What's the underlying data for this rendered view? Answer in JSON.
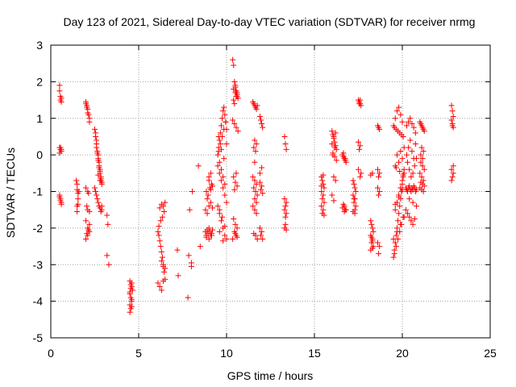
{
  "chart_data": {
    "type": "scatter",
    "title": "Day 123 of 2021, Sidereal Day-to-day VTEC variation (SDTVAR) for receiver nrmg",
    "xlabel": "GPS time / hours",
    "ylabel": "SDTVAR / TECUs",
    "xlim": [
      0,
      25
    ],
    "ylim": [
      -5,
      3
    ],
    "xticks": [
      0,
      5,
      10,
      15,
      20,
      25
    ],
    "yticks": [
      -5,
      -4,
      -3,
      -2,
      -1,
      0,
      1,
      2,
      3
    ],
    "grid": true,
    "marker": "+",
    "marker_color": "#ff0000",
    "series": [
      {
        "name": "SDTVAR",
        "x": [
          0.5,
          0.5,
          0.55,
          0.55,
          0.6,
          0.6,
          0.5,
          0.55,
          0.6,
          0.5,
          0.55,
          0.6,
          0.5,
          0.55,
          0.6,
          0.5,
          0.55,
          0.6,
          1.5,
          1.5,
          1.55,
          1.55,
          1.5,
          1.5,
          1.6,
          1.45,
          1.55,
          2.0,
          2.05,
          2.1,
          2.15,
          2.2,
          2.0,
          2.05,
          2.1,
          2.2,
          2.0,
          2.1,
          2.15,
          2.05,
          2.1,
          2.2,
          2.0,
          2.1,
          2.2,
          2.05,
          2.15,
          2.2,
          2.0,
          2.1,
          2.5,
          2.55,
          2.6,
          2.65,
          2.7,
          2.75,
          2.8,
          2.85,
          2.55,
          2.6,
          2.7,
          2.75,
          2.8,
          2.85,
          2.9,
          2.6,
          2.7,
          2.8,
          2.9,
          2.65,
          2.75,
          2.85,
          2.5,
          2.6,
          2.7,
          2.8,
          2.9,
          2.55,
          2.65,
          2.75,
          2.85,
          2.9,
          2.7,
          2.8,
          3.2,
          3.25,
          3.2,
          3.3,
          4.5,
          4.55,
          4.6,
          4.65,
          4.5,
          4.55,
          4.6,
          4.5,
          4.6,
          4.55,
          4.5,
          4.6,
          4.55,
          4.5,
          4.6,
          6.1,
          6.15,
          6.2,
          6.25,
          6.3,
          6.35,
          6.4,
          6.45,
          6.5,
          6.1,
          6.2,
          6.3,
          6.4,
          6.5,
          6.15,
          6.25,
          6.35,
          6.45,
          6.2,
          6.3,
          6.4,
          6.5,
          6.3,
          6.4,
          7.2,
          7.25,
          7.8,
          7.85,
          8.0,
          8.0,
          8.05,
          7.9,
          8.4,
          8.5,
          8.8,
          8.85,
          8.9,
          8.95,
          9.0,
          9.05,
          9.1,
          9.15,
          9.2,
          8.85,
          8.95,
          9.05,
          9.15,
          8.9,
          9.0,
          9.1,
          9.2,
          8.8,
          8.9,
          9.0,
          9.1,
          9.2,
          8.85,
          9.0,
          9.15,
          9.0,
          9.1,
          9.5,
          9.55,
          9.6,
          9.65,
          9.7,
          9.75,
          9.8,
          9.85,
          9.9,
          9.95,
          10.0,
          9.5,
          9.6,
          9.7,
          9.8,
          9.9,
          10.0,
          9.55,
          9.65,
          9.75,
          9.85,
          9.95,
          9.6,
          9.7,
          9.8,
          9.9,
          9.5,
          9.6,
          9.7,
          9.8,
          9.9,
          10.0,
          9.6,
          9.8,
          9.55,
          9.7,
          9.85,
          10.0,
          9.6,
          9.75,
          9.9,
          10.35,
          10.4,
          10.45,
          10.5,
          10.55,
          10.6,
          10.65,
          10.4,
          10.5,
          10.6,
          10.35,
          10.45,
          10.55,
          10.65,
          10.4,
          10.5,
          10.6,
          10.45,
          10.55,
          10.4,
          10.5,
          10.6,
          10.45,
          10.55,
          10.35,
          10.5,
          10.6,
          10.4,
          10.5,
          10.45,
          10.55,
          10.6,
          11.5,
          11.55,
          11.6,
          11.65,
          11.7,
          11.75,
          11.6,
          11.7,
          11.55,
          11.65,
          11.5,
          11.6,
          11.7,
          11.55,
          11.65,
          11.75,
          11.6,
          11.7,
          11.5,
          11.6,
          11.7,
          11.65,
          11.75,
          11.55,
          11.6,
          11.9,
          11.95,
          12.0,
          12.05,
          11.9,
          12.0,
          11.95,
          12.05,
          11.9,
          12.0,
          11.95,
          12.05,
          12.0,
          11.9,
          13.3,
          13.35,
          13.4,
          13.3,
          13.4,
          13.35,
          13.3,
          13.4,
          13.35,
          13.3,
          13.4,
          13.35,
          15.4,
          15.45,
          15.5,
          15.55,
          15.4,
          15.5,
          15.45,
          15.55,
          15.4,
          15.5,
          15.45,
          15.55,
          15.5,
          15.4,
          16.0,
          16.05,
          16.1,
          16.15,
          16.2,
          16.25,
          16.05,
          16.15,
          16.25,
          16.0,
          16.1,
          16.2,
          16.05,
          16.15,
          16.1,
          16.2,
          16.0,
          16.1,
          16.6,
          16.65,
          16.7,
          16.75,
          16.8,
          16.65,
          16.75,
          16.7,
          16.6,
          16.8,
          16.7,
          16.65,
          16.75,
          17.2,
          17.25,
          17.3,
          17.35,
          17.2,
          17.3,
          17.25,
          17.35,
          17.3,
          17.2,
          17.3,
          17.25,
          17.5,
          17.55,
          17.6,
          17.65,
          17.55,
          17.6,
          17.5,
          17.6,
          17.55,
          17.65,
          17.6,
          17.5,
          18.2,
          18.25,
          18.3,
          18.35,
          18.2,
          18.3,
          18.25,
          18.35,
          18.3,
          18.2,
          18.3,
          18.25,
          18.2,
          18.3,
          18.6,
          18.65,
          18.7,
          18.6,
          18.7,
          18.65,
          18.6,
          18.7,
          18.65,
          18.6,
          18.7,
          18.65,
          19.5,
          19.55,
          19.6,
          19.65,
          19.7,
          19.75,
          19.8,
          19.85,
          19.9,
          19.95,
          20.0,
          20.05,
          20.1,
          19.55,
          19.65,
          19.75,
          19.85,
          19.95,
          20.05,
          19.6,
          19.7,
          19.8,
          19.9,
          20.0,
          20.1,
          19.5,
          19.6,
          19.7,
          19.8,
          19.9,
          20.0,
          19.55,
          19.65,
          19.75,
          19.85,
          19.95,
          20.05,
          19.6,
          19.8,
          20.0,
          19.7,
          19.9,
          20.1,
          19.65,
          19.85,
          20.05,
          19.5,
          19.7,
          19.9,
          20.1,
          19.6,
          19.8,
          20.0,
          20.2,
          20.25,
          20.3,
          20.35,
          20.4,
          20.45,
          20.5,
          20.55,
          20.6,
          20.65,
          20.7,
          20.75,
          20.8,
          20.25,
          20.35,
          20.45,
          20.55,
          20.65,
          20.75,
          20.3,
          20.4,
          20.5,
          20.6,
          20.7,
          20.8,
          20.2,
          20.3,
          20.4,
          20.5,
          20.6,
          20.7,
          20.25,
          20.35,
          20.45,
          20.55,
          20.65,
          20.75,
          20.4,
          20.6,
          20.8,
          21.0,
          21.05,
          21.1,
          21.15,
          21.2,
          21.25,
          21.05,
          21.15,
          21.25,
          21.0,
          21.1,
          21.2,
          21.05,
          21.15,
          21.25,
          21.1,
          21.2,
          21.0,
          21.1,
          21.2,
          21.05,
          21.15,
          22.8,
          22.85,
          22.9,
          22.8,
          22.85,
          22.9,
          22.8,
          22.9,
          22.85,
          22.8,
          22.9,
          22.85
        ],
        "y": [
          1.9,
          1.75,
          1.6,
          1.5,
          1.55,
          1.45,
          0.2,
          0.15,
          0.1,
          0.05,
          0.2,
          0.15,
          -1.1,
          -1.2,
          -1.3,
          -1.15,
          -1.25,
          -1.35,
          -0.8,
          -0.95,
          -1.05,
          -1.2,
          -1.4,
          -1.55,
          -1.0,
          -0.7,
          -1.35,
          1.45,
          1.35,
          1.25,
          1.1,
          0.9,
          1.4,
          1.3,
          1.15,
          1.0,
          -0.9,
          -1.0,
          -1.05,
          -1.4,
          -1.5,
          -1.55,
          -1.8,
          -2.0,
          -2.1,
          -2.15,
          -2.05,
          -1.9,
          -2.3,
          -2.2,
          0.7,
          0.5,
          0.3,
          0.1,
          -0.1,
          -0.3,
          -0.5,
          -0.7,
          0.6,
          0.4,
          0.0,
          -0.2,
          -0.4,
          -0.6,
          -0.8,
          0.2,
          -0.15,
          -0.45,
          -0.75,
          0.05,
          -0.35,
          -0.65,
          -0.9,
          -1.1,
          -1.3,
          -1.45,
          -1.5,
          -1.0,
          -1.2,
          -1.4,
          -1.55,
          -1.4,
          -0.55,
          -0.7,
          -1.65,
          -1.9,
          -2.75,
          -3.0,
          -3.45,
          -3.55,
          -3.6,
          -3.7,
          -3.8,
          -3.9,
          -4.0,
          -4.1,
          -4.15,
          -4.2,
          -4.3,
          -3.5,
          -3.65,
          -3.75,
          -3.95,
          -2.1,
          -2.2,
          -2.35,
          -2.5,
          -2.65,
          -2.8,
          -3.0,
          -3.2,
          -3.4,
          -3.5,
          -3.6,
          -3.7,
          -3.45,
          -3.1,
          -1.95,
          -1.8,
          -1.7,
          -1.55,
          -1.45,
          -1.35,
          -1.4,
          -1.3,
          -2.9,
          -3.05,
          -2.6,
          -3.3,
          -3.9,
          -2.75,
          -2.95,
          -3.05,
          -1.0,
          -1.5,
          -0.3,
          -2.5,
          -2.1,
          -2.2,
          -2.05,
          -2.15,
          -2.0,
          -2.1,
          -2.2,
          -2.15,
          -2.05,
          -1.0,
          -1.1,
          -0.9,
          -0.8,
          -1.2,
          -0.7,
          -0.95,
          -0.85,
          -1.5,
          -1.6,
          -1.4,
          -1.3,
          -1.45,
          -2.25,
          -2.3,
          -2.2,
          -0.6,
          -0.5,
          0.0,
          0.2,
          0.4,
          0.6,
          0.8,
          1.0,
          1.2,
          1.3,
          1.1,
          0.9,
          0.7,
          -0.3,
          -0.5,
          -0.7,
          -0.9,
          -1.1,
          -1.3,
          0.1,
          0.3,
          0.5,
          0.7,
          0.9,
          -0.2,
          -0.4,
          -0.6,
          -0.8,
          -1.4,
          -1.6,
          -1.8,
          -2.0,
          -2.2,
          -2.3,
          -2.1,
          -2.35,
          0.5,
          0.15,
          -0.1,
          0.3,
          -1.5,
          -1.7,
          -1.95,
          2.6,
          2.45,
          2.0,
          1.85,
          1.75,
          1.65,
          1.55,
          1.8,
          1.7,
          1.6,
          0.95,
          0.85,
          0.75,
          0.65,
          -0.6,
          -0.75,
          -0.85,
          -0.95,
          -0.5,
          -1.75,
          -1.9,
          -2.0,
          -2.1,
          -2.2,
          -2.3,
          -2.15,
          -2.25,
          1.5,
          1.9,
          1.4,
          1.6,
          1.7,
          1.45,
          1.4,
          1.35,
          1.3,
          1.25,
          1.35,
          0.4,
          0.3,
          0.2,
          0.1,
          -0.6,
          -0.7,
          -0.8,
          -0.9,
          -1.0,
          -1.1,
          -1.2,
          -1.3,
          -1.4,
          -1.5,
          -1.6,
          -2.2,
          -2.3,
          -2.15,
          -0.2,
          1.05,
          0.95,
          0.85,
          0.75,
          -0.75,
          -0.85,
          -0.95,
          -1.05,
          -2.0,
          -2.1,
          -2.2,
          -2.3,
          -0.35,
          -0.5,
          0.5,
          0.3,
          0.15,
          -1.2,
          -1.3,
          -1.4,
          -1.5,
          -1.6,
          -1.9,
          -2.0,
          -2.05,
          -1.7,
          -0.6,
          -0.7,
          -0.8,
          -0.9,
          -1.0,
          -1.1,
          -1.2,
          -1.3,
          -1.4,
          -1.5,
          -1.6,
          -1.65,
          -0.55,
          -0.85,
          0.65,
          0.55,
          0.45,
          0.35,
          0.25,
          0.15,
          0.05,
          -0.05,
          -0.15,
          0.3,
          0.5,
          0.6,
          0.0,
          0.2,
          -0.6,
          -0.7,
          -1.1,
          -1.25,
          0.0,
          -0.05,
          -0.1,
          -0.15,
          -0.2,
          0.05,
          -0.1,
          -1.4,
          -1.45,
          -1.5,
          -1.55,
          -1.35,
          -1.5,
          -0.7,
          -0.8,
          -0.9,
          -1.0,
          -1.1,
          -1.2,
          -1.3,
          -1.4,
          -1.5,
          -1.55,
          -1.6,
          -1.2,
          1.5,
          1.45,
          1.4,
          1.35,
          1.4,
          1.5,
          0.35,
          0.25,
          0.15,
          -0.5,
          -0.6,
          -0.4,
          -1.8,
          -1.9,
          -2.0,
          -2.1,
          -2.2,
          -2.3,
          -2.4,
          -2.5,
          -2.55,
          -2.6,
          -2.35,
          -2.25,
          -0.55,
          -0.5,
          0.8,
          0.75,
          0.7,
          -0.4,
          -0.5,
          -0.6,
          -0.9,
          -1.0,
          -1.1,
          -2.4,
          -2.5,
          -2.7,
          -2.8,
          -2.6,
          -2.4,
          -2.2,
          -2.0,
          -1.8,
          -1.6,
          -1.4,
          -1.2,
          -1.0,
          -0.8,
          -0.6,
          -0.4,
          -2.7,
          -2.5,
          -2.3,
          -2.1,
          -1.9,
          -1.7,
          -1.5,
          -1.3,
          -1.1,
          -0.9,
          -0.7,
          -0.5,
          0.8,
          1.0,
          1.2,
          1.3,
          1.1,
          0.9,
          0.75,
          0.7,
          0.65,
          0.6,
          0.55,
          0.5,
          -0.3,
          -0.2,
          -0.1,
          0.0,
          0.1,
          0.2,
          -0.35,
          -0.45,
          -0.55,
          -2.3,
          -2.1,
          -1.9,
          -1.7,
          -1.35,
          -1.15,
          -0.95,
          -0.9,
          -0.95,
          -1.0,
          -0.9,
          -0.85,
          -0.95,
          -1.0,
          -0.9,
          -0.95,
          -0.85,
          -0.9,
          -1.0,
          -0.95,
          0.0,
          0.2,
          0.4,
          0.1,
          -0.1,
          0.3,
          -0.2,
          -0.4,
          -0.6,
          -0.5,
          -0.3,
          -0.1,
          -1.5,
          -1.6,
          -1.7,
          -1.8,
          -1.9,
          -1.75,
          0.8,
          0.9,
          1.0,
          0.85,
          0.75,
          0.6,
          -1.2,
          -1.3,
          -1.4,
          0.9,
          0.85,
          0.8,
          0.75,
          0.7,
          0.65,
          -0.2,
          -0.3,
          -0.4,
          -0.5,
          -0.6,
          -0.7,
          -0.75,
          -0.8,
          -0.85,
          0.2,
          0.1,
          -0.9,
          -0.95,
          -1.0,
          0.0,
          -0.1,
          1.35,
          1.2,
          1.05,
          0.95,
          0.85,
          0.75,
          -0.4,
          -0.5,
          -0.6,
          -0.7,
          -0.3,
          0.8
        ]
      }
    ]
  }
}
